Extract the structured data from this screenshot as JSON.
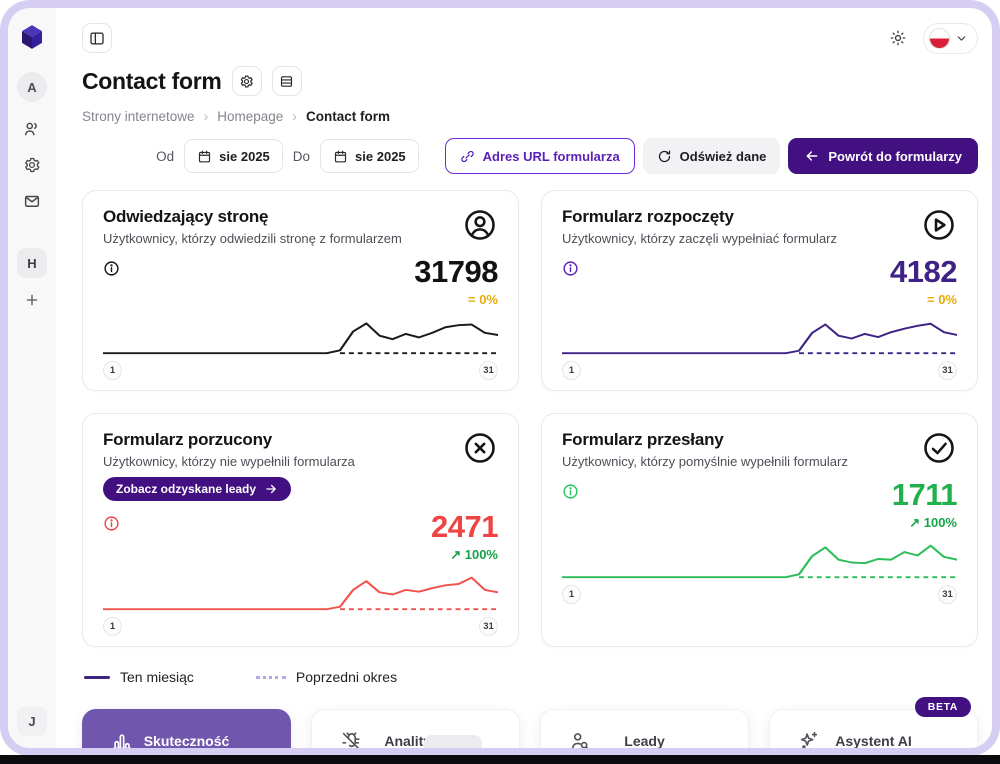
{
  "sidebar": {
    "logo": "cube-logo",
    "workspace_top": "A",
    "icons": [
      "users",
      "settings",
      "mail"
    ],
    "workspace_h": "H",
    "add_label": "+",
    "user_bottom": "J"
  },
  "topbar": {
    "theme_icon": "sun",
    "language_flag": "PL"
  },
  "header": {
    "title": "Contact form",
    "breadcrumb": [
      "Strony internetowe",
      "Homepage",
      "Contact form"
    ]
  },
  "filters": {
    "from_label": "Od",
    "from_value": "sie 2025",
    "to_label": "Do",
    "to_value": "sie 2025"
  },
  "actions": {
    "url_button": "Adres URL formularza",
    "refresh_button": "Odśwież dane",
    "back_button": "Powrót do formularzy"
  },
  "cards": [
    {
      "title": "Odwiedzający stronę",
      "subtitle": "Użytkownicy, którzy odwiedzili stronę z formularzem",
      "icon": "user-circle",
      "value": "31798",
      "delta": "= 0%",
      "delta_color": "#e7ac08",
      "value_color": "#121214",
      "line_color": "#1b1b1f",
      "accent": "#121214",
      "axis_start": "1",
      "axis_end": "31"
    },
    {
      "title": "Formularz rozpoczęty",
      "subtitle": "Użytkownicy, którzy zaczęli wypełniać formularz",
      "icon": "play-circle",
      "value": "4182",
      "delta": "= 0%",
      "delta_color": "#e7ac08",
      "value_color": "#3f2384",
      "line_color": "#3f2384",
      "accent": "#5b21b6",
      "axis_start": "1",
      "axis_end": "31"
    },
    {
      "title": "Formularz porzucony",
      "subtitle": "Użytkownicy, którzy nie wypełnili formularza",
      "icon": "x-circle",
      "badge_label": "Zobacz odzyskane leady",
      "value": "2471",
      "delta": "↗ 100%",
      "delta_color": "#17a34a",
      "value_color": "#ef4444",
      "line_color": "#f0534b",
      "accent": "#ef4444",
      "axis_start": "1",
      "axis_end": "31"
    },
    {
      "title": "Formularz przesłany",
      "subtitle": "Użytkownicy, którzy pomyślnie wypełnili formularz",
      "icon": "check-circle",
      "value": "1711",
      "delta": "↗ 100%",
      "delta_color": "#17a34a",
      "value_color": "#22b04c",
      "line_color": "#2cbd58",
      "accent": "#22c55e",
      "axis_start": "1",
      "axis_end": "31"
    }
  ],
  "legend": {
    "current": "Ten miesiąc",
    "previous": "Poprzedni okres"
  },
  "tabs": [
    {
      "label": "Skuteczność",
      "icon": "bar-chart",
      "active": true
    },
    {
      "label": "Analityka",
      "icon": "bug-off",
      "active": false
    },
    {
      "label": "Leady",
      "icon": "user-search",
      "active": false
    },
    {
      "label": "Asystent AI",
      "icon": "sparkles",
      "active": false,
      "badge": "BETA"
    }
  ],
  "chart_data": [
    {
      "metric": "Odwiedzający stronę",
      "type": "line",
      "total": 31798,
      "x_axis": {
        "label": "day of month",
        "start": 1,
        "end": 31
      },
      "previous_flat_from_day": 19,
      "previous_value": 0,
      "series": [
        {
          "name": "Ten miesiąc",
          "style": "solid",
          "values": [
            0,
            0,
            0,
            0,
            0,
            0,
            0,
            0,
            0,
            0,
            0,
            0,
            0,
            0,
            0,
            0,
            0,
            0,
            0.08,
            0.62,
            0.85,
            0.5,
            0.4,
            0.55,
            0.45,
            0.58,
            0.74,
            0.8,
            0.82,
            0.58,
            0.52
          ]
        },
        {
          "name": "Poprzedni okres",
          "style": "dashed",
          "values_note": "flat 0 from day 19 to 31"
        }
      ]
    },
    {
      "metric": "Formularz rozpoczęty",
      "type": "line",
      "total": 4182,
      "x_axis": {
        "label": "day of month",
        "start": 1,
        "end": 31
      },
      "previous_flat_from_day": 19,
      "previous_value": 0,
      "series": [
        {
          "name": "Ten miesiąc",
          "style": "solid",
          "values": [
            0,
            0,
            0,
            0,
            0,
            0,
            0,
            0,
            0,
            0,
            0,
            0,
            0,
            0,
            0,
            0,
            0,
            0,
            0.07,
            0.58,
            0.82,
            0.5,
            0.42,
            0.55,
            0.46,
            0.6,
            0.7,
            0.78,
            0.84,
            0.6,
            0.52
          ]
        },
        {
          "name": "Poprzedni okres",
          "style": "dashed",
          "values_note": "flat 0 from day 19 to 31"
        }
      ]
    },
    {
      "metric": "Formularz porzucony",
      "type": "line",
      "total": 2471,
      "x_axis": {
        "label": "day of month",
        "start": 1,
        "end": 31
      },
      "previous_flat_from_day": 19,
      "previous_value": 0,
      "series": [
        {
          "name": "Ten miesiąc",
          "style": "solid",
          "values": [
            0,
            0,
            0,
            0,
            0,
            0,
            0,
            0,
            0,
            0,
            0,
            0,
            0,
            0,
            0,
            0,
            0,
            0,
            0.07,
            0.55,
            0.8,
            0.48,
            0.42,
            0.55,
            0.5,
            0.6,
            0.68,
            0.72,
            0.9,
            0.55,
            0.48
          ]
        },
        {
          "name": "Poprzedni okres",
          "style": "dashed",
          "values_note": "flat 0 from day 19 to 31"
        }
      ]
    },
    {
      "metric": "Formularz przesłany",
      "type": "line",
      "total": 1711,
      "x_axis": {
        "label": "day of month",
        "start": 1,
        "end": 31
      },
      "previous_flat_from_day": 19,
      "previous_value": 0,
      "series": [
        {
          "name": "Ten miesiąc",
          "style": "solid",
          "values": [
            0,
            0,
            0,
            0,
            0,
            0,
            0,
            0,
            0,
            0,
            0,
            0,
            0,
            0,
            0,
            0,
            0,
            0,
            0.08,
            0.6,
            0.85,
            0.5,
            0.42,
            0.4,
            0.52,
            0.5,
            0.72,
            0.62,
            0.9,
            0.58,
            0.5
          ]
        },
        {
          "name": "Poprzedni okres",
          "style": "dashed",
          "values_note": "flat 0 from day 19 to 31"
        }
      ]
    }
  ]
}
